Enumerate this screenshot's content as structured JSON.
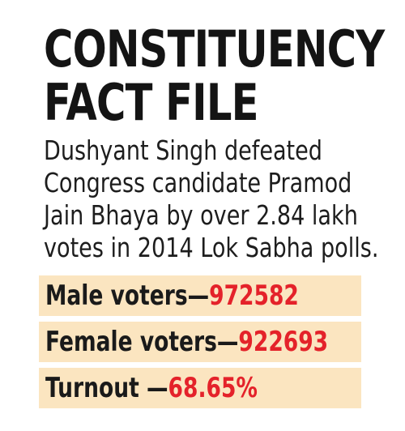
{
  "title": {
    "line1": "CONSTITUENCY",
    "line2": "FACT FILE"
  },
  "description": {
    "lines": [
      "Dushyant Singh defeated",
      "Congress candidate Pramod",
      "Jain Bhaya by over 2.84 lakh",
      "votes in 2014 Lok Sabha polls."
    ]
  },
  "stats": {
    "male": {
      "label": "Male voters—",
      "value": "972582"
    },
    "female": {
      "label": "Female voters—",
      "value": "922693"
    },
    "turnout": {
      "label": "Turnout —",
      "value": "68.65%"
    }
  },
  "colors": {
    "value_red": "#e4222a",
    "band_beige": "#fbe5c0",
    "text_dark": "#1a1a1a"
  }
}
